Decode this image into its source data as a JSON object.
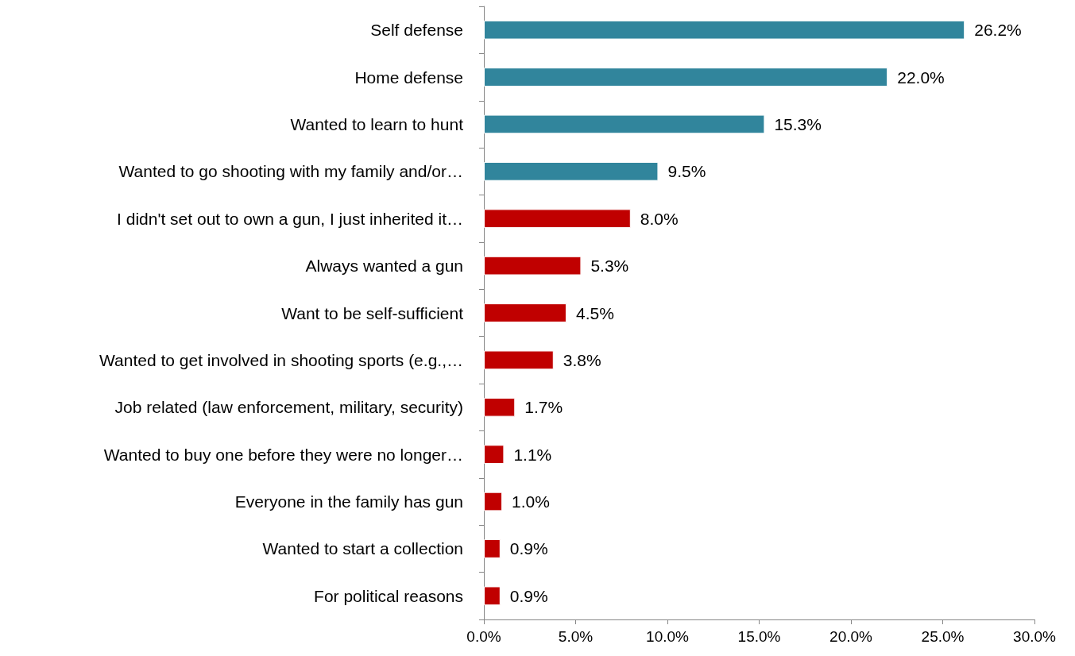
{
  "chart_data": {
    "type": "bar",
    "orientation": "horizontal",
    "categories": [
      "Self defense",
      "Home defense",
      "Wanted to learn to hunt",
      "Wanted to go shooting with my family and/or…",
      "I didn't set out to own a gun, I just inherited it…",
      "Always wanted a gun",
      "Want to be self-sufficient",
      "Wanted to get involved in shooting sports (e.g.,…",
      "Job related (law enforcement, military, security)",
      "Wanted to buy one before they were no longer…",
      "Everyone in the family has gun",
      "Wanted to start a collection",
      "For political reasons"
    ],
    "values": [
      26.2,
      22.0,
      15.3,
      9.5,
      8.0,
      5.3,
      4.5,
      3.8,
      1.7,
      1.1,
      1.0,
      0.9,
      0.9
    ],
    "value_labels": [
      "26.2%",
      "22.0%",
      "15.3%",
      "9.5%",
      "8.0%",
      "5.3%",
      "4.5%",
      "3.8%",
      "1.7%",
      "1.1%",
      "1.0%",
      "0.9%",
      "0.9%"
    ],
    "colors": [
      "#31859c",
      "#31859c",
      "#31859c",
      "#31859c",
      "#c00000",
      "#c00000",
      "#c00000",
      "#c00000",
      "#c00000",
      "#c00000",
      "#c00000",
      "#c00000",
      "#c00000"
    ],
    "xlim": [
      0,
      30
    ],
    "xticks": [
      {
        "value": 0,
        "label": "0.0%"
      },
      {
        "value": 5,
        "label": "5.0%"
      },
      {
        "value": 10,
        "label": "10.0%"
      },
      {
        "value": 15,
        "label": "15.0%"
      },
      {
        "value": 20,
        "label": "20.0%"
      },
      {
        "value": 25,
        "label": "25.0%"
      },
      {
        "value": 30,
        "label": "30.0%"
      }
    ],
    "grid": false
  }
}
